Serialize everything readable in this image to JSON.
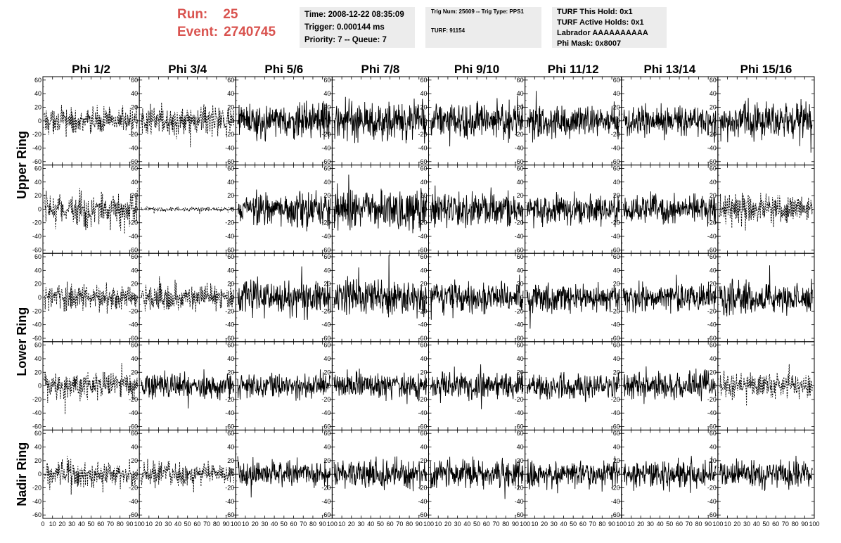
{
  "header": {
    "run_label": "Run:",
    "run_value": "25",
    "event_label": "Event:",
    "event_value": "2740745",
    "info_box_1": [
      "Time: 2008-12-22 08:35:09",
      "Trigger: 0.000144 ms",
      "Priority: 7 -- Queue: 7"
    ],
    "info_box_2": [
      "Trig Num: 25609 -- Trig Type: PPS1",
      "TURF: 91154"
    ],
    "info_box_3": [
      "TURF This Hold: 0x1",
      "TURF Active Holds: 0x1",
      "Labrador AAAAAAAAAA",
      "Phi Mask: 0x8007"
    ]
  },
  "colors": {
    "title_red": "#d9534f",
    "info_bg": "#ececec",
    "trace": "#000000"
  },
  "chart_data": {
    "type": "line",
    "column_titles": [
      "Phi 1/2",
      "Phi 3/4",
      "Phi 5/6",
      "Phi 7/8",
      "Phi 9/10",
      "Phi 11/12",
      "Phi 13/14",
      "Phi 15/16"
    ],
    "row_titles": [
      "Upper Ring",
      "Lower Ring",
      "Nadir Ring"
    ],
    "row_title_spans": [
      [
        0,
        1
      ],
      [
        2,
        3
      ],
      [
        4,
        4
      ]
    ],
    "panel_rows": 5,
    "panel_cols": 8,
    "ylim": [
      -65,
      65
    ],
    "y_ticks": [
      60,
      40,
      20,
      0,
      -20,
      -40,
      -60
    ],
    "y_tick_labels": [
      "60",
      "40",
      "20",
      "0",
      "-20",
      "-40",
      "-60"
    ],
    "xlim": [
      0,
      100
    ],
    "x_ticks": [
      0,
      10,
      20,
      30,
      40,
      50,
      60,
      70,
      80,
      90,
      100
    ],
    "x_tick_labels_first": [
      "0",
      "10",
      "20",
      "30",
      "40",
      "50",
      "60",
      "70",
      "80",
      "90",
      "100"
    ],
    "x_tick_labels": [
      "10",
      "20",
      "30",
      "40",
      "50",
      "60",
      "70",
      "80",
      "90",
      "100"
    ],
    "trace_style_grid": [
      [
        "dashed",
        "dashed",
        "solid",
        "solid",
        "solid",
        "solid",
        "solid",
        "solid"
      ],
      [
        "dashed",
        "dashed",
        "solid",
        "solid",
        "solid",
        "solid",
        "solid",
        "dashed"
      ],
      [
        "dashed",
        "dashed",
        "solid",
        "solid",
        "solid",
        "solid",
        "solid",
        "solid"
      ],
      [
        "dashed",
        "solid",
        "solid",
        "solid",
        "solid",
        "solid",
        "solid",
        "dashed"
      ],
      [
        "dashed",
        "dashed",
        "solid",
        "solid",
        "solid",
        "solid",
        "solid",
        "solid"
      ]
    ],
    "amplitude_grid": [
      [
        9,
        10,
        12,
        14,
        13,
        11,
        10,
        12
      ],
      [
        12,
        1.5,
        12,
        14,
        12,
        10,
        10,
        11
      ],
      [
        9,
        9,
        12,
        13,
        11,
        10,
        10,
        11
      ],
      [
        10,
        9,
        9,
        10,
        10,
        9,
        9,
        9
      ],
      [
        9,
        8,
        9,
        10,
        10,
        10,
        10,
        10
      ]
    ]
  }
}
